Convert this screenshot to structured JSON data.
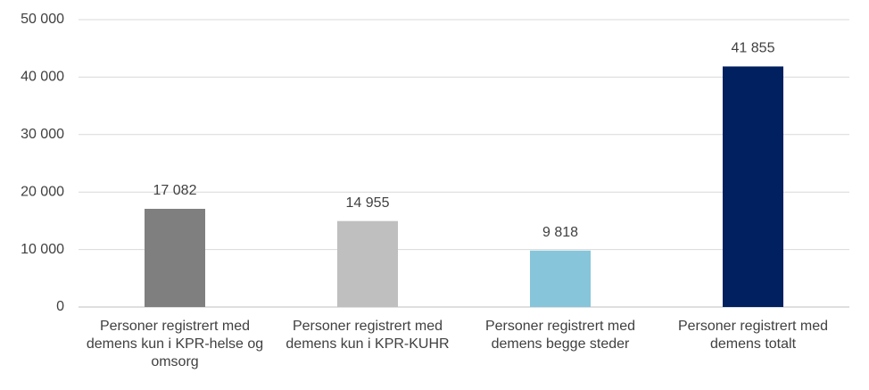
{
  "chart_data": {
    "type": "bar",
    "categories": [
      "Personer registrert med demens kun i KPR-helse og omsorg",
      "Personer registrert med demens kun i KPR-KUHR",
      "Personer registrert med demens begge steder",
      "Personer registrert med demens totalt"
    ],
    "values": [
      17082,
      14955,
      9818,
      41855
    ],
    "value_labels": [
      "17 082",
      "14 955",
      "9 818",
      "41 855"
    ],
    "colors": [
      "#7f7f7f",
      "#bfbfbf",
      "#86c5da",
      "#002060"
    ],
    "ylim": [
      0,
      50000
    ],
    "yticks": [
      {
        "value": 0,
        "label": "0"
      },
      {
        "value": 10000,
        "label": "10 000"
      },
      {
        "value": 20000,
        "label": "20 000"
      },
      {
        "value": 30000,
        "label": "30 000"
      },
      {
        "value": 40000,
        "label": "40 000"
      },
      {
        "value": 50000,
        "label": "50 000"
      }
    ],
    "grid": true
  }
}
